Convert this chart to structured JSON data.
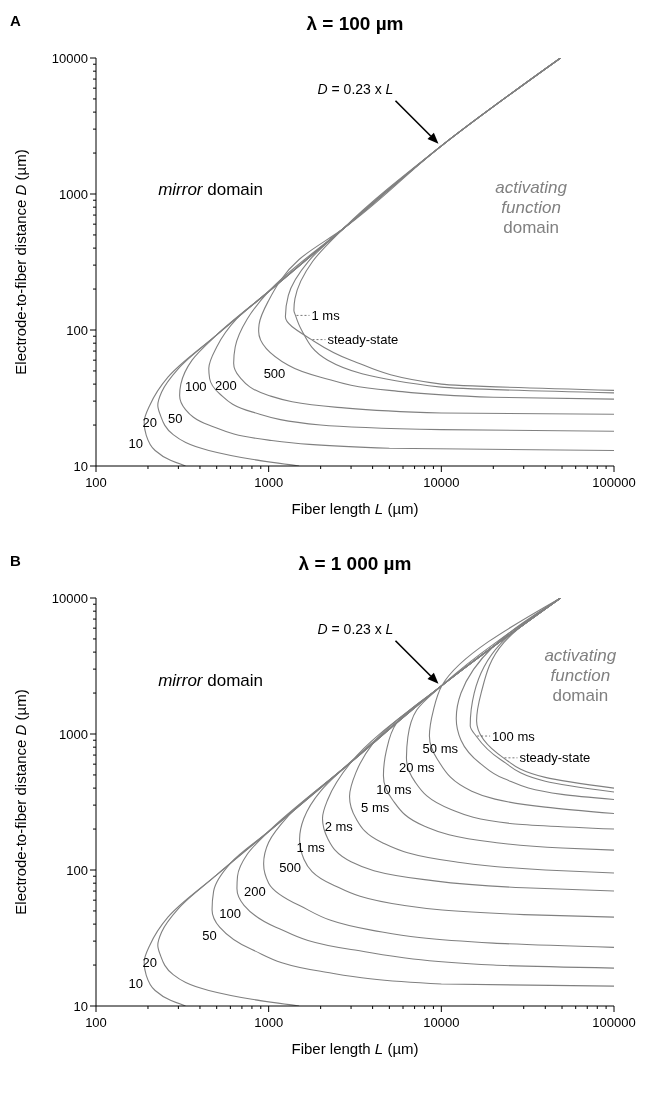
{
  "chart_data": [
    {
      "type": "line",
      "title": "λ = 100 µm",
      "xlabel": "Fiber length L (µm)",
      "ylabel": "Electrode-to-fiber distance D (µm)",
      "log": "xy",
      "xlim": [
        100,
        100000
      ],
      "ylim": [
        10,
        10000
      ],
      "xticks": [
        100,
        {
          "value": 200,
          "label": null
        },
        {
          "value": 300,
          "label": null
        },
        {
          "value": 400,
          "label": null
        },
        {
          "value": 500,
          "label": null
        },
        {
          "value": 600,
          "label": null
        },
        {
          "value": 700,
          "label": null
        },
        {
          "value": 800,
          "label": null
        },
        {
          "value": 900,
          "label": null
        },
        1000,
        {
          "value": 2000,
          "label": null
        },
        {
          "value": 3000,
          "label": null
        },
        {
          "value": 4000,
          "label": null
        },
        {
          "value": 5000,
          "label": null
        },
        {
          "value": 6000,
          "label": null
        },
        {
          "value": 7000,
          "label": null
        },
        {
          "value": 8000,
          "label": null
        },
        {
          "value": 9000,
          "label": null
        },
        10000,
        {
          "value": 20000,
          "label": null
        },
        {
          "value": 30000,
          "label": null
        },
        {
          "value": 40000,
          "label": null
        },
        {
          "value": 50000,
          "label": null
        },
        {
          "value": 60000,
          "label": null
        },
        {
          "value": 70000,
          "label": null
        },
        {
          "value": 80000,
          "label": null
        },
        {
          "value": 90000,
          "label": null
        },
        100000
      ],
      "yticks": [
        10,
        {
          "value": 20,
          "label": null
        },
        {
          "value": 30,
          "label": null
        },
        {
          "value": 40,
          "label": null
        },
        {
          "value": 50,
          "label": null
        },
        {
          "value": 60,
          "label": null
        },
        {
          "value": 70,
          "label": null
        },
        {
          "value": 80,
          "label": null
        },
        {
          "value": 90,
          "label": null
        },
        100,
        {
          "value": 200,
          "label": null
        },
        {
          "value": 300,
          "label": null
        },
        {
          "value": 400,
          "label": null
        },
        {
          "value": 500,
          "label": null
        },
        {
          "value": 600,
          "label": null
        },
        {
          "value": 700,
          "label": null
        },
        {
          "value": 800,
          "label": null
        },
        {
          "value": 900,
          "label": null
        },
        1000,
        {
          "value": 2000,
          "label": null
        },
        {
          "value": 3000,
          "label": null
        },
        {
          "value": 4000,
          "label": null
        },
        {
          "value": 5000,
          "label": null
        },
        {
          "value": 6000,
          "label": null
        },
        {
          "value": 7000,
          "label": null
        },
        {
          "value": 8000,
          "label": null
        },
        {
          "value": 9000,
          "label": null
        },
        10000
      ],
      "annotations": [
        "A",
        "mirror domain",
        "activating function domain",
        "D = 0.23 x L"
      ],
      "series": [
        {
          "name": "10",
          "color": "#808080",
          "x": [
            49000,
            10100,
            2700,
            1000,
            500,
            261,
            205,
            190,
            195,
            220,
            270,
            330
          ],
          "values": [
            10000,
            2280,
            555,
            192,
            92,
            45,
            28,
            21,
            17,
            13,
            11,
            10
          ]
        },
        {
          "name": "20",
          "color": "#808080",
          "x": [
            49000,
            10100,
            2700,
            1000,
            500,
            300,
            240,
            228,
            235,
            280,
            450,
            800,
            1500
          ],
          "values": [
            10000,
            2280,
            555,
            192,
            92,
            52,
            35,
            28,
            24,
            17,
            13,
            11.2,
            10
          ]
        },
        {
          "name": "50",
          "color": "#808080",
          "x": [
            49000,
            10100,
            2700,
            1000,
            500,
            360,
            310,
            305,
            330,
            450,
            1000,
            5000,
            100000
          ],
          "values": [
            10000,
            2280,
            555,
            192,
            92,
            60,
            40,
            33,
            26,
            20,
            15.5,
            13.5,
            13
          ]
        },
        {
          "name": "100",
          "color": "#808080",
          "x": [
            49000,
            10100,
            2700,
            1000,
            650,
            500,
            450,
            455,
            520,
            800,
            2000,
            10000,
            100000
          ],
          "values": [
            10000,
            2280,
            555,
            192,
            120,
            75,
            52,
            44,
            34,
            25,
            20,
            18.5,
            18
          ]
        },
        {
          "name": "200",
          "color": "#808080",
          "x": [
            49000,
            10100,
            2700,
            1000,
            750,
            640,
            627,
            680,
            1000,
            2500,
            10000,
            100000
          ],
          "values": [
            10000,
            2280,
            555,
            192,
            120,
            75,
            57,
            45,
            33,
            27,
            24.5,
            24
          ]
        },
        {
          "name": "500",
          "color": "#808080",
          "x": [
            49000,
            10100,
            2700,
            1500,
            1000,
            880,
            875,
            1300,
            2000,
            5000,
            20000,
            100000
          ],
          "values": [
            10000,
            2280,
            555,
            330,
            165,
            110,
            98,
            55,
            45,
            36,
            32,
            31
          ]
        },
        {
          "name": "1 ms",
          "color": "#808080",
          "x": [
            49000,
            10100,
            2700,
            1800,
            1420,
            1400,
            1430,
            1550,
            2200,
            10000,
            100000
          ],
          "values": [
            10000,
            2280,
            555,
            320,
            170,
            140,
            128,
            100,
            60,
            38,
            34.5
          ]
        },
        {
          "name": "steady-state",
          "color": "#808080",
          "x": [
            49000,
            10100,
            2700,
            1700,
            1300,
            1250,
            1770,
            3000,
            10000,
            100000
          ],
          "values": [
            10000,
            2280,
            555,
            320,
            180,
            125,
            85,
            60,
            40,
            36
          ]
        }
      ]
    },
    {
      "type": "line",
      "title": "λ = 1 000 µm",
      "xlabel": "Fiber length L (µm)",
      "ylabel": "Electrode-to-fiber distance D (µm)",
      "log": "xy",
      "xlim": [
        100,
        100000
      ],
      "ylim": [
        10,
        10000
      ],
      "xticks": [
        100,
        {
          "value": 200,
          "label": null
        },
        {
          "value": 300,
          "label": null
        },
        {
          "value": 400,
          "label": null
        },
        {
          "value": 500,
          "label": null
        },
        {
          "value": 600,
          "label": null
        },
        {
          "value": 700,
          "label": null
        },
        {
          "value": 800,
          "label": null
        },
        {
          "value": 900,
          "label": null
        },
        1000,
        {
          "value": 2000,
          "label": null
        },
        {
          "value": 3000,
          "label": null
        },
        {
          "value": 4000,
          "label": null
        },
        {
          "value": 5000,
          "label": null
        },
        {
          "value": 6000,
          "label": null
        },
        {
          "value": 7000,
          "label": null
        },
        {
          "value": 8000,
          "label": null
        },
        {
          "value": 9000,
          "label": null
        },
        10000,
        {
          "value": 20000,
          "label": null
        },
        {
          "value": 30000,
          "label": null
        },
        {
          "value": 40000,
          "label": null
        },
        {
          "value": 50000,
          "label": null
        },
        {
          "value": 60000,
          "label": null
        },
        {
          "value": 70000,
          "label": null
        },
        {
          "value": 80000,
          "label": null
        },
        {
          "value": 90000,
          "label": null
        },
        100000
      ],
      "yticks": [
        10,
        {
          "value": 20,
          "label": null
        },
        {
          "value": 30,
          "label": null
        },
        {
          "value": 40,
          "label": null
        },
        {
          "value": 50,
          "label": null
        },
        {
          "value": 60,
          "label": null
        },
        {
          "value": 70,
          "label": null
        },
        {
          "value": 80,
          "label": null
        },
        {
          "value": 90,
          "label": null
        },
        100,
        {
          "value": 200,
          "label": null
        },
        {
          "value": 300,
          "label": null
        },
        {
          "value": 400,
          "label": null
        },
        {
          "value": 500,
          "label": null
        },
        {
          "value": 600,
          "label": null
        },
        {
          "value": 700,
          "label": null
        },
        {
          "value": 800,
          "label": null
        },
        {
          "value": 900,
          "label": null
        },
        1000,
        {
          "value": 2000,
          "label": null
        },
        {
          "value": 3000,
          "label": null
        },
        {
          "value": 4000,
          "label": null
        },
        {
          "value": 5000,
          "label": null
        },
        {
          "value": 6000,
          "label": null
        },
        {
          "value": 7000,
          "label": null
        },
        {
          "value": 8000,
          "label": null
        },
        {
          "value": 9000,
          "label": null
        },
        10000
      ],
      "annotations": [
        "B",
        "mirror domain",
        "activating function domain",
        "D = 0.23 x L"
      ],
      "series": [
        {
          "name": "10",
          "color": "#808080",
          "x": [
            49000,
            10100,
            2700,
            1000,
            500,
            261,
            205,
            190,
            195,
            220,
            270,
            330
          ],
          "values": [
            10000,
            2280,
            555,
            192,
            92,
            45,
            28,
            21,
            17,
            13,
            11,
            10
          ]
        },
        {
          "name": "20",
          "color": "#808080",
          "x": [
            49000,
            10100,
            2700,
            1000,
            500,
            300,
            240,
            228,
            235,
            280,
            450,
            800,
            1500
          ],
          "values": [
            10000,
            2280,
            555,
            192,
            92,
            52,
            35,
            28,
            24,
            17,
            13,
            11.2,
            10
          ]
        },
        {
          "name": "50",
          "color": "#808080",
          "x": [
            49000,
            10100,
            2700,
            1000,
            600,
            480,
            470,
            520,
            800,
            2000,
            10000,
            100000
          ],
          "values": [
            10000,
            2280,
            555,
            192,
            112,
            70,
            51,
            38,
            26,
            18,
            14.5,
            14
          ]
        },
        {
          "name": "100",
          "color": "#808080",
          "x": [
            49000,
            10100,
            2700,
            1000,
            750,
            660,
            655,
            720,
            1100,
            3000,
            20000,
            100000
          ],
          "values": [
            10000,
            2280,
            555,
            192,
            130,
            90,
            73,
            55,
            38,
            26,
            20,
            19
          ]
        },
        {
          "name": "200",
          "color": "#808080",
          "x": [
            49000,
            10100,
            2700,
            1300,
            1000,
            935,
            1000,
            1500,
            4000,
            20000,
            100000
          ],
          "values": [
            10000,
            2280,
            555,
            250,
            160,
            111,
            80,
            55,
            36,
            29,
            27
          ]
        },
        {
          "name": "500",
          "color": "#808080",
          "x": [
            49000,
            10100,
            2700,
            2000,
            1600,
            1510,
            1600,
            2300,
            6000,
            30000,
            100000
          ],
          "values": [
            10000,
            2280,
            555,
            380,
            240,
            168,
            120,
            79,
            55,
            47,
            45
          ]
        },
        {
          "name": "1 ms",
          "color": "#808080",
          "x": [
            49000,
            10100,
            3000,
            2200,
            2050,
            2200,
            3000,
            8000,
            30000,
            100000
          ],
          "values": [
            10000,
            2280,
            620,
            330,
            240,
            170,
            115,
            85,
            74,
            70
          ]
        },
        {
          "name": "2 ms",
          "color": "#808080",
          "x": [
            49000,
            10100,
            4000,
            3200,
            2940,
            3200,
            4500,
            12000,
            40000,
            100000
          ],
          "values": [
            10000,
            2280,
            847,
            520,
            347,
            240,
            160,
            115,
            100,
            95
          ]
        },
        {
          "name": "5 ms",
          "color": "#808080",
          "x": [
            49000,
            10100,
            5500,
            4800,
            4620,
            5200,
            8000,
            20000,
            50000,
            100000
          ],
          "values": [
            10000,
            2280,
            1200,
            750,
            493,
            330,
            210,
            160,
            145,
            140
          ]
        },
        {
          "name": "10 ms",
          "color": "#808080",
          "x": [
            49000,
            10100,
            7200,
            6400,
            6280,
            7000,
            11300,
            25000,
            100000
          ],
          "values": [
            10000,
            2280,
            1500,
            950,
            668,
            450,
            280,
            220,
            200
          ]
        },
        {
          "name": "20 ms",
          "color": "#808080",
          "x": [
            49000,
            10100,
            9000,
            8530,
            9500,
            15000,
            40000,
            100000
          ],
          "values": [
            10000,
            2280,
            1500,
            966,
            650,
            380,
            290,
            260
          ]
        },
        {
          "name": "50 ms",
          "color": "#808080",
          "x": [
            49000,
            20000,
            13000,
            12200,
            13000,
            17000,
            23000,
            50000,
            100000
          ],
          "values": [
            10000,
            4400,
            2000,
            1300,
            900,
            600,
            470,
            360,
            330
          ]
        },
        {
          "name": "100 ms",
          "color": "#808080",
          "x": [
            49000,
            22000,
            15500,
            14700,
            15900,
            22000,
            40000,
            100000
          ],
          "values": [
            10000,
            4600,
            2000,
            1150,
            966,
            650,
            450,
            375
          ]
        },
        {
          "name": "steady-state",
          "color": "#808080",
          "x": [
            49000,
            23000,
            17000,
            16000,
            22900,
            40000,
            100000
          ],
          "values": [
            10000,
            4700,
            2000,
            1250,
            668,
            480,
            400
          ]
        }
      ]
    }
  ]
}
